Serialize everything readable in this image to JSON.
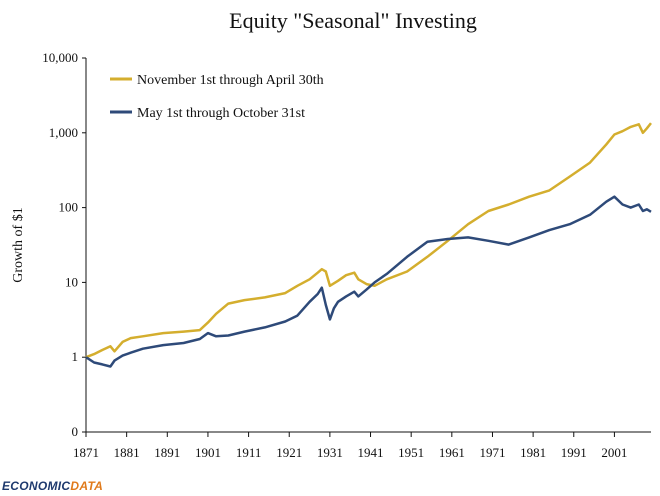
{
  "chart_data": {
    "type": "line",
    "title": "Equity \"Seasonal\" Investing",
    "xlabel": "",
    "ylabel": "Growth of $1",
    "yscale": "log",
    "ylim": [
      0.1,
      10000
    ],
    "xlim": [
      1871,
      2010
    ],
    "y_ticks": [
      0.1,
      1,
      10,
      100,
      1000,
      10000
    ],
    "y_tick_labels": [
      "0",
      "1",
      "10",
      "100",
      "1,000",
      "10,000"
    ],
    "x_ticks": [
      1871,
      1881,
      1891,
      1901,
      1911,
      1921,
      1931,
      1941,
      1951,
      1961,
      1971,
      1981,
      1991,
      2001
    ],
    "x_tick_labels": [
      "1871",
      "1881",
      "1891",
      "1901",
      "1911",
      "1921",
      "1931",
      "1941",
      "1951",
      "1961",
      "1971",
      "1981",
      "1991",
      "2001"
    ],
    "legend_position": "top-left",
    "series": [
      {
        "name": "November 1st through April 30th",
        "color": "#d4ae2e",
        "x": [
          1871,
          1873,
          1875,
          1877,
          1878,
          1880,
          1882,
          1885,
          1890,
          1895,
          1899,
          1901,
          1903,
          1906,
          1910,
          1915,
          1920,
          1923,
          1926,
          1928,
          1929,
          1930,
          1931,
          1933,
          1935,
          1937,
          1938,
          1940,
          1942,
          1945,
          1950,
          1955,
          1960,
          1965,
          1970,
          1975,
          1980,
          1985,
          1990,
          1995,
          1999,
          2001,
          2003,
          2005,
          2007,
          2008,
          2009,
          2010
        ],
        "values": [
          1.0,
          1.1,
          1.25,
          1.4,
          1.2,
          1.6,
          1.8,
          1.9,
          2.1,
          2.2,
          2.3,
          2.9,
          3.8,
          5.2,
          5.8,
          6.3,
          7.2,
          9.0,
          11,
          13.5,
          15,
          14,
          9,
          10.5,
          12.5,
          13.5,
          11,
          9.5,
          9,
          11,
          14,
          22,
          36,
          60,
          90,
          110,
          140,
          170,
          260,
          400,
          700,
          950,
          1050,
          1200,
          1300,
          1000,
          1150,
          1350
        ]
      },
      {
        "name": "May 1st through October 31st",
        "color": "#2e4a79",
        "x": [
          1871,
          1873,
          1875,
          1877,
          1878,
          1880,
          1882,
          1885,
          1890,
          1895,
          1899,
          1901,
          1903,
          1906,
          1910,
          1915,
          1920,
          1923,
          1926,
          1928,
          1929,
          1930,
          1931,
          1932,
          1933,
          1935,
          1937,
          1938,
          1940,
          1942,
          1945,
          1950,
          1955,
          1960,
          1965,
          1970,
          1975,
          1980,
          1985,
          1990,
          1995,
          1999,
          2001,
          2003,
          2005,
          2007,
          2008,
          2009,
          2010
        ],
        "values": [
          1.0,
          0.85,
          0.8,
          0.75,
          0.9,
          1.05,
          1.15,
          1.3,
          1.45,
          1.55,
          1.75,
          2.1,
          1.9,
          1.95,
          2.2,
          2.5,
          3.0,
          3.6,
          5.5,
          7.0,
          8.5,
          5.0,
          3.2,
          4.5,
          5.5,
          6.5,
          7.5,
          6.5,
          8.0,
          10,
          13,
          22,
          35,
          38,
          40,
          36,
          32,
          40,
          50,
          60,
          80,
          120,
          140,
          110,
          100,
          110,
          90,
          95,
          88
        ]
      }
    ]
  },
  "logo": {
    "text_left": "ECONOMIC",
    "text_right": "DATA"
  }
}
